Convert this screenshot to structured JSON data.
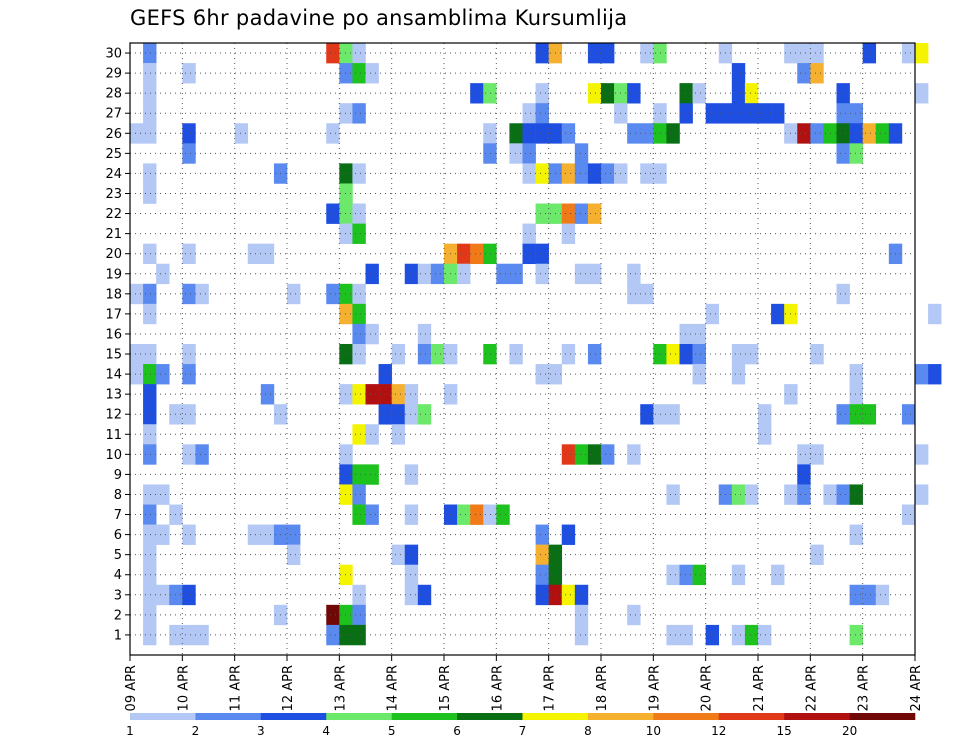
{
  "title": "GEFS 6hr padavine po ansamblima Kursumlija",
  "chart_data": {
    "type": "heatmap",
    "title": "GEFS 6hr padavine po ansamblima Kursumlija",
    "xlabel": "",
    "ylabel": "",
    "x_tick_labels": [
      "09 APR",
      "10 APR",
      "11 APR",
      "12 APR",
      "13 APR",
      "14 APR",
      "15 APR",
      "16 APR",
      "17 APR",
      "18 APR",
      "19 APR",
      "20 APR",
      "21 APR",
      "22 APR",
      "23 APR",
      "24 APR"
    ],
    "y_tick_labels": [
      "1",
      "2",
      "3",
      "4",
      "5",
      "6",
      "7",
      "8",
      "9",
      "10",
      "11",
      "12",
      "13",
      "14",
      "15",
      "16",
      "17",
      "18",
      "19",
      "20",
      "21",
      "22",
      "23",
      "24",
      "25",
      "26",
      "27",
      "28",
      "29",
      "30"
    ],
    "x_steps_per_day": 4,
    "grid": true,
    "legend_placement": "bottom",
    "colorbar": {
      "labels": [
        "1",
        "2",
        "3",
        "4",
        "5",
        "6",
        "7",
        "8",
        "10",
        "12",
        "15",
        "20"
      ],
      "colors": [
        "#b4c8f5",
        "#5a8af0",
        "#1f4fe0",
        "#6ce86a",
        "#1ec21e",
        "#0a6e14",
        "#f4f400",
        "#f6b030",
        "#f07a18",
        "#e03818",
        "#b01010",
        "#700808"
      ]
    },
    "cell_value_note": "values are colorbar class indices (0=lightest ... 11=darkest)",
    "cells": [
      [
        1,
        30,
        1
      ],
      [
        15,
        30,
        9
      ],
      [
        16,
        30,
        3
      ],
      [
        17,
        30,
        0
      ],
      [
        31,
        30,
        2
      ],
      [
        32,
        30,
        7
      ],
      [
        35,
        30,
        2
      ],
      [
        36,
        30,
        2
      ],
      [
        39,
        30,
        0
      ],
      [
        40,
        30,
        3
      ],
      [
        45,
        30,
        0
      ],
      [
        50,
        30,
        0
      ],
      [
        51,
        30,
        0
      ],
      [
        52,
        30,
        0
      ],
      [
        56,
        30,
        2
      ],
      [
        59,
        30,
        0
      ],
      [
        60,
        30,
        6
      ],
      [
        1,
        29,
        0
      ],
      [
        4,
        29,
        0
      ],
      [
        16,
        29,
        1
      ],
      [
        17,
        29,
        4
      ],
      [
        18,
        29,
        0
      ],
      [
        46,
        29,
        2
      ],
      [
        51,
        29,
        1
      ],
      [
        52,
        29,
        7
      ],
      [
        1,
        28,
        0
      ],
      [
        26,
        28,
        2
      ],
      [
        27,
        28,
        3
      ],
      [
        31,
        28,
        0
      ],
      [
        35,
        28,
        6
      ],
      [
        36,
        28,
        5
      ],
      [
        37,
        28,
        3
      ],
      [
        38,
        28,
        2
      ],
      [
        42,
        28,
        5
      ],
      [
        43,
        28,
        0
      ],
      [
        46,
        28,
        2
      ],
      [
        47,
        28,
        6
      ],
      [
        54,
        28,
        2
      ],
      [
        60,
        28,
        0
      ],
      [
        1,
        27,
        0
      ],
      [
        16,
        27,
        0
      ],
      [
        17,
        27,
        1
      ],
      [
        30,
        27,
        0
      ],
      [
        31,
        27,
        1
      ],
      [
        37,
        27,
        0
      ],
      [
        40,
        27,
        0
      ],
      [
        42,
        27,
        2
      ],
      [
        44,
        27,
        2
      ],
      [
        45,
        27,
        2
      ],
      [
        46,
        27,
        2
      ],
      [
        47,
        27,
        2
      ],
      [
        48,
        27,
        2
      ],
      [
        49,
        27,
        2
      ],
      [
        54,
        27,
        1
      ],
      [
        55,
        27,
        1
      ],
      [
        0,
        26,
        0
      ],
      [
        1,
        26,
        0
      ],
      [
        4,
        26,
        2
      ],
      [
        8,
        26,
        0
      ],
      [
        15,
        26,
        0
      ],
      [
        27,
        26,
        0
      ],
      [
        29,
        26,
        5
      ],
      [
        30,
        26,
        2
      ],
      [
        31,
        26,
        2
      ],
      [
        32,
        26,
        2
      ],
      [
        33,
        26,
        1
      ],
      [
        38,
        26,
        1
      ],
      [
        39,
        26,
        1
      ],
      [
        40,
        26,
        4
      ],
      [
        41,
        26,
        5
      ],
      [
        50,
        26,
        0
      ],
      [
        51,
        26,
        10
      ],
      [
        52,
        26,
        1
      ],
      [
        53,
        26,
        4
      ],
      [
        54,
        26,
        5
      ],
      [
        55,
        26,
        2
      ],
      [
        56,
        26,
        7
      ],
      [
        57,
        26,
        4
      ],
      [
        58,
        26,
        2
      ],
      [
        4,
        25,
        1
      ],
      [
        27,
        25,
        1
      ],
      [
        29,
        25,
        0
      ],
      [
        30,
        25,
        1
      ],
      [
        34,
        25,
        1
      ],
      [
        54,
        25,
        1
      ],
      [
        55,
        25,
        3
      ],
      [
        1,
        24,
        0
      ],
      [
        11,
        24,
        1
      ],
      [
        16,
        24,
        5
      ],
      [
        17,
        24,
        0
      ],
      [
        30,
        24,
        0
      ],
      [
        31,
        24,
        6
      ],
      [
        32,
        24,
        1
      ],
      [
        33,
        24,
        7
      ],
      [
        34,
        24,
        1
      ],
      [
        35,
        24,
        2
      ],
      [
        36,
        24,
        1
      ],
      [
        37,
        24,
        0
      ],
      [
        39,
        24,
        0
      ],
      [
        40,
        24,
        0
      ],
      [
        1,
        23,
        0
      ],
      [
        16,
        23,
        3
      ],
      [
        15,
        22,
        2
      ],
      [
        16,
        22,
        3
      ],
      [
        17,
        22,
        0
      ],
      [
        31,
        22,
        3
      ],
      [
        32,
        22,
        3
      ],
      [
        33,
        22,
        8
      ],
      [
        34,
        22,
        1
      ],
      [
        35,
        22,
        7
      ],
      [
        16,
        21,
        0
      ],
      [
        17,
        21,
        4
      ],
      [
        30,
        21,
        0
      ],
      [
        33,
        21,
        0
      ],
      [
        1,
        20,
        0
      ],
      [
        4,
        20,
        0
      ],
      [
        9,
        20,
        0
      ],
      [
        10,
        20,
        0
      ],
      [
        24,
        20,
        7
      ],
      [
        25,
        20,
        9
      ],
      [
        26,
        20,
        8
      ],
      [
        27,
        20,
        4
      ],
      [
        30,
        20,
        2
      ],
      [
        31,
        20,
        2
      ],
      [
        58,
        20,
        1
      ],
      [
        2,
        19,
        0
      ],
      [
        18,
        19,
        2
      ],
      [
        21,
        19,
        2
      ],
      [
        22,
        19,
        0
      ],
      [
        23,
        19,
        1
      ],
      [
        24,
        19,
        3
      ],
      [
        25,
        19,
        0
      ],
      [
        28,
        19,
        1
      ],
      [
        29,
        19,
        1
      ],
      [
        31,
        19,
        0
      ],
      [
        34,
        19,
        0
      ],
      [
        35,
        19,
        0
      ],
      [
        38,
        19,
        0
      ],
      [
        0,
        18,
        0
      ],
      [
        1,
        18,
        1
      ],
      [
        4,
        18,
        1
      ],
      [
        5,
        18,
        0
      ],
      [
        12,
        18,
        0
      ],
      [
        15,
        18,
        1
      ],
      [
        16,
        18,
        4
      ],
      [
        17,
        18,
        0
      ],
      [
        38,
        18,
        0
      ],
      [
        39,
        18,
        0
      ],
      [
        54,
        18,
        0
      ],
      [
        1,
        17,
        0
      ],
      [
        16,
        17,
        7
      ],
      [
        17,
        17,
        4
      ],
      [
        44,
        17,
        0
      ],
      [
        49,
        17,
        2
      ],
      [
        50,
        17,
        6
      ],
      [
        61,
        17,
        0
      ],
      [
        17,
        16,
        1
      ],
      [
        18,
        16,
        0
      ],
      [
        22,
        16,
        0
      ],
      [
        42,
        16,
        0
      ],
      [
        43,
        16,
        0
      ],
      [
        0,
        15,
        0
      ],
      [
        1,
        15,
        0
      ],
      [
        4,
        15,
        0
      ],
      [
        16,
        15,
        5
      ],
      [
        17,
        15,
        0
      ],
      [
        20,
        15,
        0
      ],
      [
        22,
        15,
        1
      ],
      [
        23,
        15,
        3
      ],
      [
        24,
        15,
        0
      ],
      [
        27,
        15,
        4
      ],
      [
        29,
        15,
        0
      ],
      [
        33,
        15,
        0
      ],
      [
        35,
        15,
        1
      ],
      [
        40,
        15,
        4
      ],
      [
        41,
        15,
        6
      ],
      [
        42,
        15,
        2
      ],
      [
        43,
        15,
        1
      ],
      [
        46,
        15,
        0
      ],
      [
        47,
        15,
        0
      ],
      [
        52,
        15,
        0
      ],
      [
        0,
        14,
        0
      ],
      [
        1,
        14,
        4
      ],
      [
        2,
        14,
        1
      ],
      [
        4,
        14,
        1
      ],
      [
        19,
        14,
        2
      ],
      [
        31,
        14,
        0
      ],
      [
        32,
        14,
        0
      ],
      [
        43,
        14,
        0
      ],
      [
        46,
        14,
        0
      ],
      [
        55,
        14,
        0
      ],
      [
        60,
        14,
        1
      ],
      [
        61,
        14,
        2
      ],
      [
        1,
        13,
        2
      ],
      [
        10,
        13,
        1
      ],
      [
        16,
        13,
        0
      ],
      [
        17,
        13,
        6
      ],
      [
        18,
        13,
        10
      ],
      [
        19,
        13,
        10
      ],
      [
        20,
        13,
        7
      ],
      [
        21,
        13,
        0
      ],
      [
        24,
        13,
        0
      ],
      [
        50,
        13,
        0
      ],
      [
        55,
        13,
        0
      ],
      [
        1,
        12,
        2
      ],
      [
        3,
        12,
        0
      ],
      [
        4,
        12,
        0
      ],
      [
        11,
        12,
        0
      ],
      [
        19,
        12,
        2
      ],
      [
        20,
        12,
        2
      ],
      [
        21,
        12,
        0
      ],
      [
        22,
        12,
        3
      ],
      [
        39,
        12,
        2
      ],
      [
        40,
        12,
        0
      ],
      [
        41,
        12,
        0
      ],
      [
        48,
        12,
        0
      ],
      [
        54,
        12,
        1
      ],
      [
        55,
        12,
        4
      ],
      [
        56,
        12,
        4
      ],
      [
        59,
        12,
        1
      ],
      [
        1,
        11,
        0
      ],
      [
        17,
        11,
        6
      ],
      [
        18,
        11,
        0
      ],
      [
        20,
        11,
        0
      ],
      [
        48,
        11,
        0
      ],
      [
        1,
        10,
        1
      ],
      [
        4,
        10,
        0
      ],
      [
        5,
        10,
        1
      ],
      [
        16,
        10,
        0
      ],
      [
        33,
        10,
        9
      ],
      [
        34,
        10,
        4
      ],
      [
        35,
        10,
        5
      ],
      [
        36,
        10,
        1
      ],
      [
        38,
        10,
        0
      ],
      [
        51,
        10,
        0
      ],
      [
        52,
        10,
        0
      ],
      [
        60,
        10,
        0
      ],
      [
        16,
        9,
        2
      ],
      [
        17,
        9,
        4
      ],
      [
        18,
        9,
        4
      ],
      [
        21,
        9,
        0
      ],
      [
        51,
        9,
        2
      ],
      [
        1,
        8,
        0
      ],
      [
        2,
        8,
        0
      ],
      [
        16,
        8,
        6
      ],
      [
        17,
        8,
        1
      ],
      [
        41,
        8,
        0
      ],
      [
        45,
        8,
        1
      ],
      [
        46,
        8,
        3
      ],
      [
        47,
        8,
        0
      ],
      [
        50,
        8,
        0
      ],
      [
        51,
        8,
        1
      ],
      [
        53,
        8,
        0
      ],
      [
        54,
        8,
        1
      ],
      [
        55,
        8,
        5
      ],
      [
        60,
        8,
        0
      ],
      [
        1,
        7,
        1
      ],
      [
        3,
        7,
        0
      ],
      [
        17,
        7,
        4
      ],
      [
        18,
        7,
        1
      ],
      [
        21,
        7,
        0
      ],
      [
        24,
        7,
        2
      ],
      [
        25,
        7,
        3
      ],
      [
        26,
        7,
        8
      ],
      [
        27,
        7,
        0
      ],
      [
        28,
        7,
        4
      ],
      [
        59,
        7,
        0
      ],
      [
        1,
        6,
        0
      ],
      [
        2,
        6,
        0
      ],
      [
        4,
        6,
        0
      ],
      [
        9,
        6,
        0
      ],
      [
        10,
        6,
        0
      ],
      [
        11,
        6,
        1
      ],
      [
        12,
        6,
        1
      ],
      [
        31,
        6,
        1
      ],
      [
        33,
        6,
        2
      ],
      [
        55,
        6,
        0
      ],
      [
        1,
        5,
        0
      ],
      [
        12,
        5,
        0
      ],
      [
        20,
        5,
        0
      ],
      [
        21,
        5,
        2
      ],
      [
        31,
        5,
        7
      ],
      [
        32,
        5,
        5
      ],
      [
        52,
        5,
        0
      ],
      [
        1,
        4,
        0
      ],
      [
        16,
        4,
        6
      ],
      [
        21,
        4,
        0
      ],
      [
        31,
        4,
        1
      ],
      [
        32,
        4,
        5
      ],
      [
        41,
        4,
        0
      ],
      [
        42,
        4,
        1
      ],
      [
        43,
        4,
        4
      ],
      [
        46,
        4,
        0
      ],
      [
        49,
        4,
        0
      ],
      [
        1,
        3,
        0
      ],
      [
        2,
        3,
        0
      ],
      [
        3,
        3,
        1
      ],
      [
        4,
        3,
        2
      ],
      [
        17,
        3,
        0
      ],
      [
        21,
        3,
        0
      ],
      [
        22,
        3,
        2
      ],
      [
        31,
        3,
        2
      ],
      [
        32,
        3,
        10
      ],
      [
        33,
        3,
        6
      ],
      [
        34,
        3,
        2
      ],
      [
        55,
        3,
        1
      ],
      [
        56,
        3,
        1
      ],
      [
        57,
        3,
        0
      ],
      [
        1,
        2,
        0
      ],
      [
        11,
        2,
        0
      ],
      [
        15,
        2,
        11
      ],
      [
        16,
        2,
        4
      ],
      [
        17,
        2,
        1
      ],
      [
        34,
        2,
        0
      ],
      [
        38,
        2,
        0
      ],
      [
        1,
        1,
        0
      ],
      [
        3,
        1,
        0
      ],
      [
        4,
        1,
        0
      ],
      [
        5,
        1,
        0
      ],
      [
        15,
        1,
        1
      ],
      [
        16,
        1,
        5
      ],
      [
        17,
        1,
        5
      ],
      [
        34,
        1,
        0
      ],
      [
        41,
        1,
        0
      ],
      [
        42,
        1,
        0
      ],
      [
        44,
        1,
        2
      ],
      [
        46,
        1,
        0
      ],
      [
        47,
        1,
        4
      ],
      [
        48,
        1,
        0
      ],
      [
        55,
        1,
        3
      ]
    ]
  }
}
